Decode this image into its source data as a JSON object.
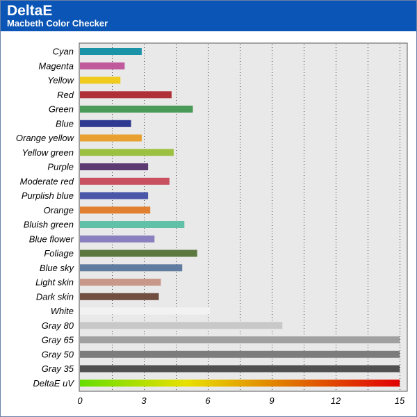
{
  "header": {
    "title": "DeltaE",
    "subtitle": "Macbeth Color Checker"
  },
  "colors": {
    "header_bg": "#0a55b5",
    "plot_bg": "#e9e9e9",
    "gradient": [
      "#66dd00",
      "#e8e000",
      "#e07000",
      "#e00000"
    ]
  },
  "chart_data": {
    "type": "bar",
    "orientation": "horizontal",
    "title": "DeltaE",
    "subtitle": "Macbeth Color Checker",
    "xlim": [
      0,
      15
    ],
    "xticks": [
      0,
      3,
      6,
      9,
      12,
      15
    ],
    "grid": "vertical dotted",
    "categories": [
      "Cyan",
      "Magenta",
      "Yellow",
      "Red",
      "Green",
      "Blue",
      "Orange yellow",
      "Yellow green",
      "Purple",
      "Moderate red",
      "Purplish blue",
      "Orange",
      "Bluish green",
      "Blue flower",
      "Foliage",
      "Blue sky",
      "Light skin",
      "Dark skin",
      "White",
      "Gray 80",
      "Gray 65",
      "Gray 50",
      "Gray 35",
      "DeltaE uV"
    ],
    "values": [
      2.9,
      2.1,
      1.9,
      4.3,
      5.3,
      2.4,
      2.9,
      4.4,
      3.2,
      4.2,
      3.2,
      3.3,
      4.9,
      3.5,
      5.5,
      4.8,
      3.8,
      3.7,
      6.1,
      9.5,
      15,
      15,
      15,
      15
    ],
    "bar_colors": [
      "#1a93a8",
      "#c05a9c",
      "#f0cc20",
      "#b03038",
      "#4a9a58",
      "#2e3a92",
      "#e8a030",
      "#9cc040",
      "#5e3a72",
      "#c85060",
      "#4a56a8",
      "#e08030",
      "#60c0a8",
      "#8a80c0",
      "#5a7840",
      "#607ca0",
      "#c89888",
      "#704e40",
      "#f2f2f2",
      "#c8c8c8",
      "#a0a0a0",
      "#7c7c7c",
      "#505050",
      "gradient"
    ]
  }
}
